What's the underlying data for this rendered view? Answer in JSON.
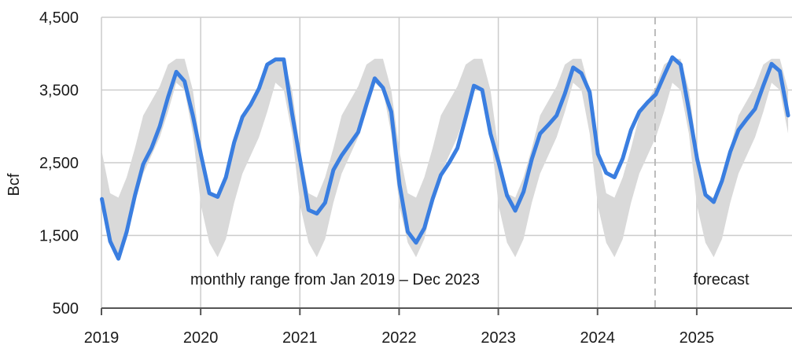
{
  "chart_data": {
    "type": "area",
    "ylabel": "Bcf",
    "xlabel": "",
    "title": "",
    "ylim": [
      500,
      4500
    ],
    "y_ticks": [
      "500",
      "1,500",
      "2,500",
      "3,500",
      "4,500"
    ],
    "y_tick_values": [
      500,
      1500,
      2500,
      3500,
      4500
    ],
    "x_ticks": [
      "2019",
      "2020",
      "2021",
      "2022",
      "2023",
      "2024",
      "2025"
    ],
    "x_tick_values": [
      2019,
      2020,
      2021,
      2022,
      2023,
      2024,
      2025
    ],
    "xlim": [
      2019,
      2025.96
    ],
    "forecast_start": 2024.58,
    "annotations": {
      "range_label": "monthly range from Jan 2019 – Dec 2023",
      "forecast_label": "forecast"
    },
    "range_band": {
      "months": [
        "Jan",
        "Feb",
        "Mar",
        "Apr",
        "May",
        "Jun",
        "Jul",
        "Aug",
        "Sep",
        "Oct",
        "Nov",
        "Dec"
      ],
      "min": [
        1900,
        1400,
        1200,
        1450,
        1950,
        2350,
        2600,
        2850,
        3200,
        3600,
        3500,
        2900
      ],
      "max": [
        2650,
        2080,
        2020,
        2300,
        2700,
        3150,
        3350,
        3550,
        3850,
        3930,
        3930,
        3500
      ]
    },
    "series": [
      {
        "values": [
          2000,
          1420,
          1180,
          1550,
          2050,
          2480,
          2700,
          3000,
          3400,
          3750,
          3620,
          3150,
          2600,
          2080,
          2030,
          2300,
          2780,
          3130,
          3300,
          3520,
          3850,
          3920,
          3920,
          3180,
          2520,
          1850,
          1800,
          1950,
          2400,
          2600,
          2760,
          2920,
          3300,
          3660,
          3530,
          3200,
          2200,
          1550,
          1400,
          1600,
          2000,
          2330,
          2500,
          2700,
          3120,
          3560,
          3500,
          2900,
          2500,
          2050,
          1840,
          2100,
          2550,
          2900,
          3020,
          3150,
          3450,
          3810,
          3730,
          3470,
          2620,
          2360,
          2300,
          2560,
          2950,
          3200,
          3330,
          3440,
          3700,
          3950,
          3850,
          3220,
          2550,
          2060,
          1960,
          2250,
          2650,
          2950,
          3100,
          3240,
          3560,
          3860,
          3760,
          3150
        ]
      }
    ],
    "colors": {
      "line": "#3a7ee0",
      "band": "#d9d9d9",
      "grid": "#cccccc",
      "axis": "#555555",
      "forecast_line": "#b5b5b5"
    }
  }
}
